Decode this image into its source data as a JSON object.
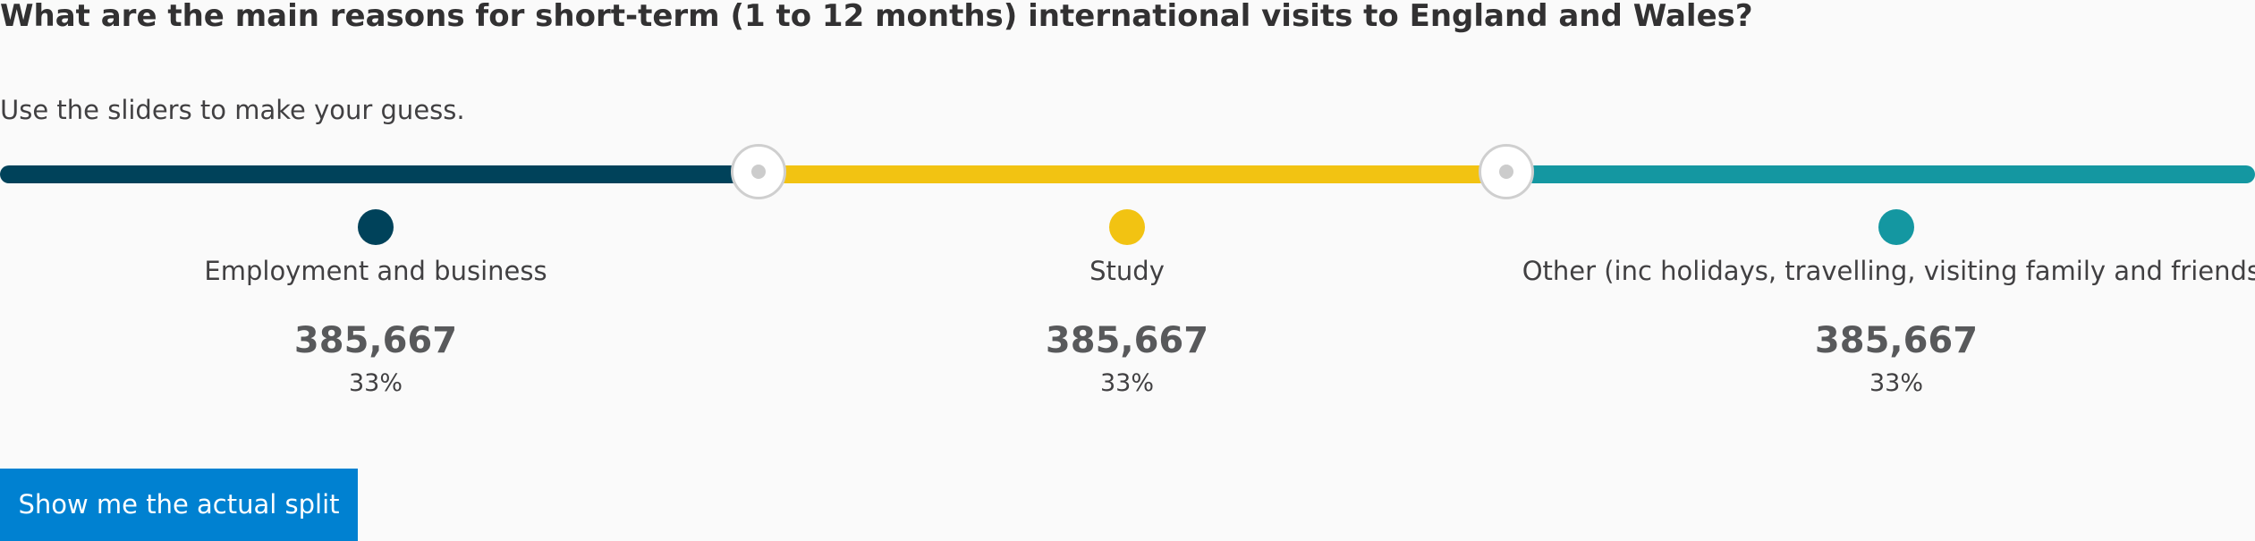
{
  "question": "What are the main reasons for short-term (1 to 12 months) international visits to England and Wales?",
  "instruction": "Use the sliders to make your guess.",
  "colors": {
    "employment": "#00425a",
    "study": "#f2c312",
    "other": "#1497a1",
    "button": "#0081d1"
  },
  "categories": [
    {
      "label": "Employment and business",
      "value": "385,667",
      "percent": "33%",
      "share": 0.333
    },
    {
      "label": "Study",
      "value": "385,667",
      "percent": "33%",
      "share": 0.333
    },
    {
      "label": "Other (inc holidays, travelling, visiting family and friends)",
      "value": "385,667",
      "percent": "33%",
      "share": 0.333
    }
  ],
  "button_label": "Show me the actual split"
}
